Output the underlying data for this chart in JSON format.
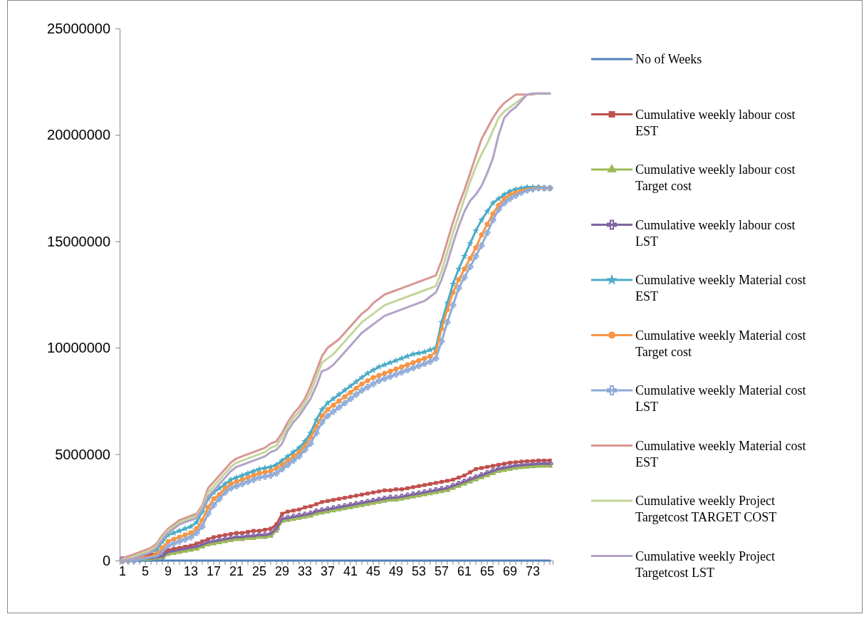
{
  "chart_data": {
    "type": "line",
    "categories": [
      "1",
      null,
      null,
      null,
      "5",
      null,
      null,
      null,
      "9",
      null,
      null,
      null,
      "13",
      null,
      null,
      null,
      "17",
      null,
      null,
      null,
      "21",
      null,
      null,
      null,
      "25",
      null,
      null,
      null,
      "29",
      null,
      null,
      null,
      "33",
      null,
      null,
      null,
      "37",
      null,
      null,
      null,
      "41",
      null,
      null,
      null,
      "45",
      null,
      null,
      null,
      "49",
      null,
      null,
      null,
      "53",
      null,
      null,
      null,
      "57",
      null,
      null,
      null,
      "61",
      null,
      null,
      null,
      "65",
      null,
      null,
      null,
      "69",
      null,
      null,
      null,
      "73",
      null,
      null,
      null
    ],
    "ylim": [
      0,
      25000000
    ],
    "yticks": [
      0,
      5000000,
      10000000,
      15000000,
      20000000,
      25000000
    ],
    "grid": false,
    "legend": "right",
    "series": [
      {
        "name": "No of Weeks",
        "color": "#4f81bd",
        "marker": "none",
        "values": [
          0,
          0,
          0,
          0,
          0,
          0,
          0,
          0,
          0,
          0,
          0,
          0,
          0,
          0,
          0,
          0,
          0,
          0,
          0,
          0,
          0,
          0,
          0,
          0,
          0,
          0,
          0,
          0,
          0,
          0,
          0,
          0,
          0,
          0,
          0,
          0,
          0,
          0,
          0,
          0,
          0,
          0,
          0,
          0,
          0,
          0,
          0,
          0,
          0,
          0,
          0,
          0,
          0,
          0,
          0,
          0,
          0,
          0,
          0,
          0,
          0,
          0,
          0,
          0,
          0,
          0,
          0,
          0,
          0,
          0,
          0,
          0,
          0,
          0,
          0,
          0
        ]
      },
      {
        "name": "Cumulative weekly labour cost EST",
        "color": "#c0504d",
        "marker": "square",
        "values": [
          100000.0,
          150000.0,
          200000.0,
          200000.0,
          250000.0,
          300000.0,
          300000.0,
          350000.0,
          500000.0,
          550000.0,
          600000.0,
          650000.0,
          700000.0,
          800000.0,
          900000.0,
          1000000.0,
          1100000.0,
          1150000.0,
          1200000.0,
          1250000.0,
          1300000.0,
          1300000.0,
          1350000.0,
          1400000.0,
          1400000.0,
          1450000.0,
          1500000.0,
          1700000.0,
          2200000.0,
          2300000.0,
          2350000.0,
          2400000.0,
          2500000.0,
          2550000.0,
          2650000.0,
          2750000.0,
          2800000.0,
          2850000.0,
          2900000.0,
          2950000.0,
          3000000.0,
          3050000.0,
          3100000.0,
          3150000.0,
          3200000.0,
          3250000.0,
          3300000.0,
          3300000.0,
          3350000.0,
          3350000.0,
          3400000.0,
          3450000.0,
          3500000.0,
          3550000.0,
          3600000.0,
          3650000.0,
          3700000.0,
          3750000.0,
          3800000.0,
          3900000.0,
          4000000.0,
          4150000.0,
          4300000.0,
          4350000.0,
          4400000.0,
          4450000.0,
          4500000.0,
          4550000.0,
          4600000.0,
          4620000.0,
          4650000.0,
          4670000.0,
          4680000.0,
          4700000.0,
          4700000.0,
          4700000.0
        ]
      },
      {
        "name": "Cumulative weekly labour cost Target cost",
        "color": "#9bbb59",
        "marker": "triangle",
        "values": [
          0,
          0,
          0,
          50000.0,
          50000.0,
          50000.0,
          100000.0,
          150000.0,
          300000.0,
          350000.0,
          400000.0,
          450000.0,
          500000.0,
          550000.0,
          650000.0,
          750000.0,
          800000.0,
          850000.0,
          900000.0,
          950000.0,
          1000000.0,
          1000000.0,
          1050000.0,
          1050000.0,
          1100000.0,
          1100000.0,
          1150000.0,
          1400000.0,
          1850000.0,
          1900000.0,
          1950000.0,
          2000000.0,
          2050000.0,
          2100000.0,
          2200000.0,
          2250000.0,
          2300000.0,
          2350000.0,
          2400000.0,
          2450000.0,
          2500000.0,
          2550000.0,
          2600000.0,
          2650000.0,
          2700000.0,
          2750000.0,
          2800000.0,
          2850000.0,
          2850000.0,
          2900000.0,
          2950000.0,
          3000000.0,
          3050000.0,
          3100000.0,
          3150000.0,
          3200000.0,
          3250000.0,
          3300000.0,
          3400000.0,
          3500000.0,
          3600000.0,
          3700000.0,
          3800000.0,
          3900000.0,
          4000000.0,
          4100000.0,
          4200000.0,
          4250000.0,
          4300000.0,
          4350000.0,
          4380000.0,
          4400000.0,
          4420000.0,
          4440000.0,
          4450000.0,
          4450000.0
        ]
      },
      {
        "name": "Cumulative weekly labour cost LST",
        "color": "#8064a2",
        "marker": "cross",
        "values": [
          50000.0,
          50000.0,
          50000.0,
          100000.0,
          100000.0,
          100000.0,
          150000.0,
          200000.0,
          400000.0,
          450000.0,
          500000.0,
          550000.0,
          600000.0,
          650000.0,
          750000.0,
          850000.0,
          900000.0,
          950000.0,
          1000000.0,
          1050000.0,
          1100000.0,
          1100000.0,
          1150000.0,
          1150000.0,
          1200000.0,
          1200000.0,
          1250000.0,
          1500000.0,
          1950000.0,
          2000000.0,
          2050000.0,
          2100000.0,
          2150000.0,
          2200000.0,
          2300000.0,
          2350000.0,
          2400000.0,
          2450000.0,
          2500000.0,
          2550000.0,
          2600000.0,
          2650000.0,
          2700000.0,
          2750000.0,
          2800000.0,
          2850000.0,
          2900000.0,
          2950000.0,
          2950000.0,
          3000000.0,
          3050000.0,
          3100000.0,
          3150000.0,
          3200000.0,
          3250000.0,
          3300000.0,
          3350000.0,
          3400000.0,
          3500000.0,
          3600000.0,
          3700000.0,
          3800000.0,
          3900000.0,
          4000000.0,
          4100000.0,
          4200000.0,
          4300000.0,
          4350000.0,
          4400000.0,
          4450000.0,
          4480000.0,
          4500000.0,
          4520000.0,
          4540000.0,
          4550000.0,
          4550000.0
        ]
      },
      {
        "name": "Cumulative weekly Material cost EST",
        "color": "#4bacc6",
        "marker": "star",
        "values": [
          0,
          50000.0,
          100000.0,
          200000.0,
          300000.0,
          400000.0,
          500000.0,
          900000.0,
          1200000.0,
          1300000.0,
          1400000.0,
          1500000.0,
          1600000.0,
          1800000.0,
          2300000.0,
          2900000.0,
          3200000.0,
          3400000.0,
          3600000.0,
          3800000.0,
          3900000.0,
          4000000.0,
          4100000.0,
          4200000.0,
          4300000.0,
          4350000.0,
          4400000.0,
          4500000.0,
          4700000.0,
          4900000.0,
          5100000.0,
          5300000.0,
          5600000.0,
          6000000.0,
          6600000.0,
          7100000.0,
          7400000.0,
          7600000.0,
          7800000.0,
          8000000.0,
          8200000.0,
          8400000.0,
          8600000.0,
          8800000.0,
          8950000.0,
          9100000.0,
          9200000.0,
          9300000.0,
          9400000.0,
          9500000.0,
          9600000.0,
          9700000.0,
          9750000.0,
          9800000.0,
          9900000.0,
          10000000.0,
          11200000.0,
          12100000.0,
          13000000.0,
          13700000.0,
          14300000.0,
          14900000.0,
          15500000.0,
          16000000.0,
          16400000.0,
          16800000.0,
          17000000.0,
          17200000.0,
          17350000.0,
          17450000.0,
          17500000.0,
          17550000.0,
          17550000.0,
          17550000.0,
          17500000.0,
          17500000.0
        ]
      },
      {
        "name": "Cumulative weekly Material cost Target cost",
        "color": "#f79646",
        "marker": "circle",
        "values": [
          0,
          0,
          50000.0,
          100000.0,
          150000.0,
          200000.0,
          300000.0,
          600000.0,
          900000.0,
          1000000.0,
          1100000.0,
          1200000.0,
          1300000.0,
          1500000.0,
          1900000.0,
          2500000.0,
          2900000.0,
          3100000.0,
          3400000.0,
          3600000.0,
          3700000.0,
          3800000.0,
          3900000.0,
          4000000.0,
          4100000.0,
          4150000.0,
          4200000.0,
          4350000.0,
          4500000.0,
          4700000.0,
          4900000.0,
          5100000.0,
          5400000.0,
          5800000.0,
          6300000.0,
          6800000.0,
          7100000.0,
          7300000.0,
          7500000.0,
          7700000.0,
          7900000.0,
          8100000.0,
          8300000.0,
          8450000.0,
          8600000.0,
          8700000.0,
          8800000.0,
          8900000.0,
          9000000.0,
          9100000.0,
          9200000.0,
          9300000.0,
          9400000.0,
          9500000.0,
          9600000.0,
          9800000.0,
          10900000.0,
          11800000.0,
          12600000.0,
          13200000.0,
          13700000.0,
          14200000.0,
          14700000.0,
          15300000.0,
          15800000.0,
          16300000.0,
          16700000.0,
          17000000.0,
          17200000.0,
          17300000.0,
          17400000.0,
          17450000.0,
          17500000.0,
          17500000.0,
          17500000.0,
          17500000.0
        ]
      },
      {
        "name": "Cumulative weekly Material cost LST",
        "color": "#8eaad8",
        "marker": "cross",
        "values": [
          0,
          0,
          0,
          50000.0,
          100000.0,
          150000.0,
          200000.0,
          400000.0,
          700000.0,
          800000.0,
          900000.0,
          1000000.0,
          1100000.0,
          1300000.0,
          1600000.0,
          2200000.0,
          2600000.0,
          2900000.0,
          3200000.0,
          3400000.0,
          3500000.0,
          3600000.0,
          3700000.0,
          3800000.0,
          3900000.0,
          3950000.0,
          4000000.0,
          4100000.0,
          4300000.0,
          4500000.0,
          4700000.0,
          4900000.0,
          5200000.0,
          5500000.0,
          6000000.0,
          6500000.0,
          6800000.0,
          7000000.0,
          7200000.0,
          7400000.0,
          7600000.0,
          7800000.0,
          8000000.0,
          8150000.0,
          8300000.0,
          8450000.0,
          8550000.0,
          8650000.0,
          8750000.0,
          8850000.0,
          8950000.0,
          9050000.0,
          9150000.0,
          9250000.0,
          9350000.0,
          9500000.0,
          10300000.0,
          11200000.0,
          12000000.0,
          12800000.0,
          13300000.0,
          13800000.0,
          14300000.0,
          14800000.0,
          15400000.0,
          16000000.0,
          16500000.0,
          16800000.0,
          17000000.0,
          17150000.0,
          17300000.0,
          17400000.0,
          17450000.0,
          17500000.0,
          17500000.0,
          17500000.0
        ]
      },
      {
        "name": "Cumulative weekly Material cost EST",
        "color": "#d99694",
        "marker": "none",
        "values": [
          100000.0,
          200000.0,
          300000.0,
          400000.0,
          500000.0,
          600000.0,
          800000.0,
          1200000.0,
          1500000.0,
          1700000.0,
          1900000.0,
          2000000.0,
          2100000.0,
          2200000.0,
          2600000.0,
          3400000.0,
          3700000.0,
          4000000.0,
          4300000.0,
          4600000.0,
          4800000.0,
          4900000.0,
          5000000.0,
          5100000.0,
          5200000.0,
          5300000.0,
          5500000.0,
          5600000.0,
          6000000.0,
          6500000.0,
          6900000.0,
          7200000.0,
          7600000.0,
          8200000.0,
          8900000.0,
          9600000.0,
          10000000.0,
          10200000.0,
          10400000.0,
          10700000.0,
          11000000.0,
          11300000.0,
          11600000.0,
          11800000.0,
          12100000.0,
          12300000.0,
          12500000.0,
          12600000.0,
          12700000.0,
          12800000.0,
          12900000.0,
          13000000.0,
          13100000.0,
          13200000.0,
          13300000.0,
          13400000.0,
          14100000.0,
          15000000.0,
          15900000.0,
          16700000.0,
          17400000.0,
          18200000.0,
          19000000.0,
          19800000.0,
          20300000.0,
          20800000.0,
          21200000.0,
          21500000.0,
          21700000.0,
          21900000.0,
          21900000.0,
          21900000.0,
          21900000.0,
          21950000.0,
          21950000.0,
          21950000.0
        ]
      },
      {
        "name": "Cumulative weekly Project Targetcost TARGET COST",
        "color": "#c3d69b",
        "marker": "none",
        "values": [
          50000.0,
          100000.0,
          200000.0,
          300000.0,
          400000.0,
          500000.0,
          700000.0,
          1100000.0,
          1400000.0,
          1600000.0,
          1800000.0,
          1900000.0,
          2000000.0,
          2100000.0,
          2500000.0,
          3200000.0,
          3500000.0,
          3800000.0,
          4100000.0,
          4400000.0,
          4600000.0,
          4700000.0,
          4800000.0,
          4900000.0,
          5000000.0,
          5100000.0,
          5300000.0,
          5400000.0,
          5800000.0,
          6300000.0,
          6700000.0,
          7000000.0,
          7400000.0,
          7900000.0,
          8600000.0,
          9300000.0,
          9500000.0,
          9700000.0,
          10000000.0,
          10300000.0,
          10600000.0,
          10900000.0,
          11200000.0,
          11400000.0,
          11600000.0,
          11800000.0,
          12000000.0,
          12100000.0,
          12200000.0,
          12300000.0,
          12400000.0,
          12500000.0,
          12600000.0,
          12700000.0,
          12800000.0,
          12900000.0,
          13600000.0,
          14500000.0,
          15400000.0,
          16200000.0,
          17000000.0,
          17800000.0,
          18500000.0,
          19100000.0,
          19600000.0,
          20200000.0,
          20800000.0,
          21100000.0,
          21300000.0,
          21500000.0,
          21700000.0,
          21900000.0,
          21950000.0,
          21950000.0,
          21950000.0,
          21950000.0
        ]
      },
      {
        "name": "Cumulative weekly Project Targetcost LST",
        "color": "#b3a2c7",
        "marker": "none",
        "values": [
          0,
          50000.0,
          100000.0,
          200000.0,
          300000.0,
          400000.0,
          600000.0,
          1000000.0,
          1300000.0,
          1500000.0,
          1700000.0,
          1800000.0,
          1900000.0,
          2000000.0,
          2400000.0,
          3000000.0,
          3300000.0,
          3600000.0,
          3900000.0,
          4200000.0,
          4400000.0,
          4500000.0,
          4600000.0,
          4700000.0,
          4800000.0,
          4900000.0,
          5100000.0,
          5200000.0,
          5500000.0,
          6100000.0,
          6500000.0,
          6800000.0,
          7200000.0,
          7600000.0,
          8200000.0,
          8900000.0,
          9000000.0,
          9200000.0,
          9500000.0,
          9800000.0,
          10100000.0,
          10400000.0,
          10700000.0,
          10900000.0,
          11100000.0,
          11300000.0,
          11500000.0,
          11600000.0,
          11700000.0,
          11800000.0,
          11900000.0,
          12000000.0,
          12100000.0,
          12200000.0,
          12400000.0,
          12600000.0,
          13200000.0,
          14000000.0,
          14900000.0,
          15700000.0,
          16400000.0,
          16900000.0,
          17200000.0,
          17600000.0,
          18200000.0,
          18900000.0,
          20000000.0,
          20800000.0,
          21100000.0,
          21300000.0,
          21600000.0,
          21900000.0,
          21950000.0,
          21950000.0,
          21950000.0,
          21950000.0
        ]
      }
    ]
  }
}
